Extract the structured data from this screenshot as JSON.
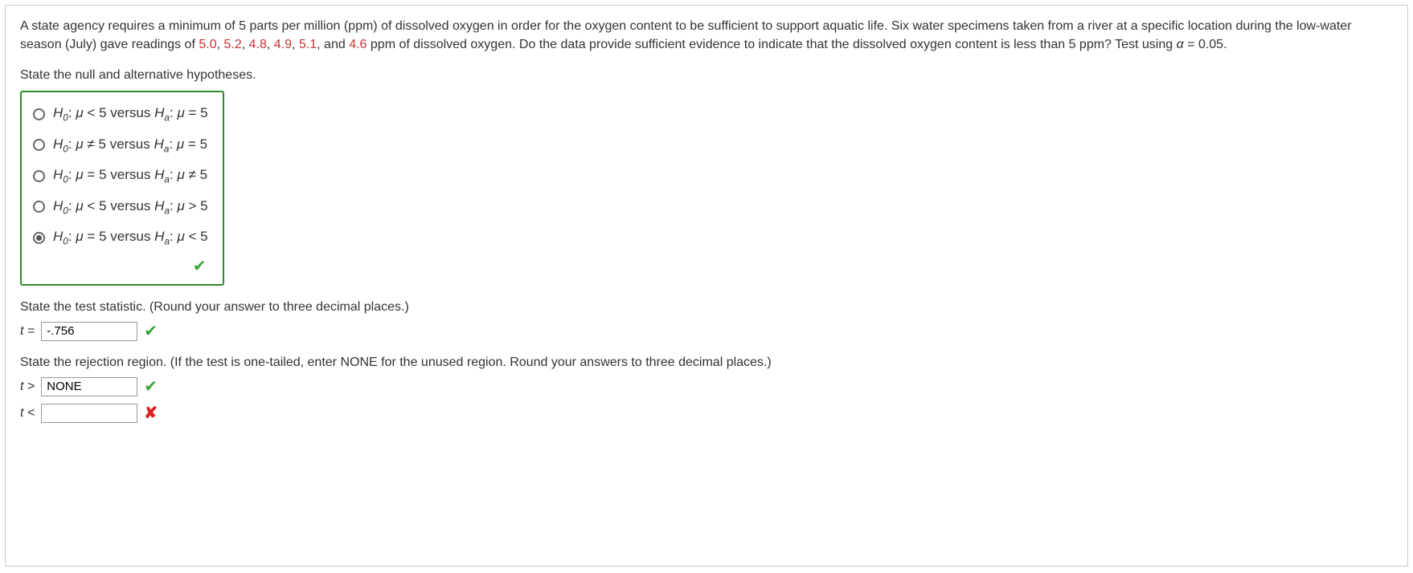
{
  "problem": {
    "pre": "A state agency requires a minimum of 5 parts per million (ppm) of dissolved oxygen in order for the oxygen content to be sufficient to support aquatic life. Six water specimens taken from a river at a specific location during the low-water season (July) gave readings of ",
    "v1": "5.0",
    "c1": ", ",
    "v2": "5.2",
    "c2": ", ",
    "v3": "4.8",
    "c3": ", ",
    "v4": "4.9",
    "c4": ", ",
    "v5": "5.1",
    "c5": ", and ",
    "v6": "4.6",
    "post1": " ppm of dissolved oxygen. Do the data provide sufficient evidence to indicate that the dissolved oxygen content is less than 5 ppm? Test using ",
    "alpha_lhs": "α",
    "alpha_eq": " = 0.05."
  },
  "prompts": {
    "hyp": "State the null and alternative hypotheses.",
    "tstat": "State the test statistic. (Round your answer to three decimal places.)",
    "region": "State the rejection region. (If the test is one-tailed, enter NONE for the unused region. Round your answers to three decimal places.)"
  },
  "options": {
    "o1": {
      "H0_rel": "<",
      "H0_val": "5",
      "Ha_rel": "=",
      "Ha_val": "5"
    },
    "o2": {
      "H0_rel": "≠",
      "H0_val": "5",
      "Ha_rel": "=",
      "Ha_val": "5"
    },
    "o3": {
      "H0_rel": "=",
      "H0_val": "5",
      "Ha_rel": "≠",
      "Ha_val": "5"
    },
    "o4": {
      "H0_rel": "<",
      "H0_val": "5",
      "Ha_rel": ">",
      "Ha_val": "5"
    },
    "o5": {
      "H0_rel": "=",
      "H0_val": "5",
      "Ha_rel": "<",
      "Ha_val": "5"
    }
  },
  "labels": {
    "mu": "μ",
    "H0_pre": "H",
    "H0_sub": "0",
    "Ha_pre": "H",
    "Ha_sub": "a",
    "colon": ": ",
    "versus": " versus ",
    "t_eq": "t = ",
    "t_gt": "t  > ",
    "t_lt": "t  < "
  },
  "answers": {
    "t_value": "-.756",
    "t_gt_value": "NONE",
    "t_lt_value": ""
  },
  "feedback": {
    "hyp": "correct",
    "t_value": "correct",
    "t_gt": "correct",
    "t_lt": "incorrect"
  },
  "icons": {
    "check": "✔",
    "cross": "✘"
  }
}
